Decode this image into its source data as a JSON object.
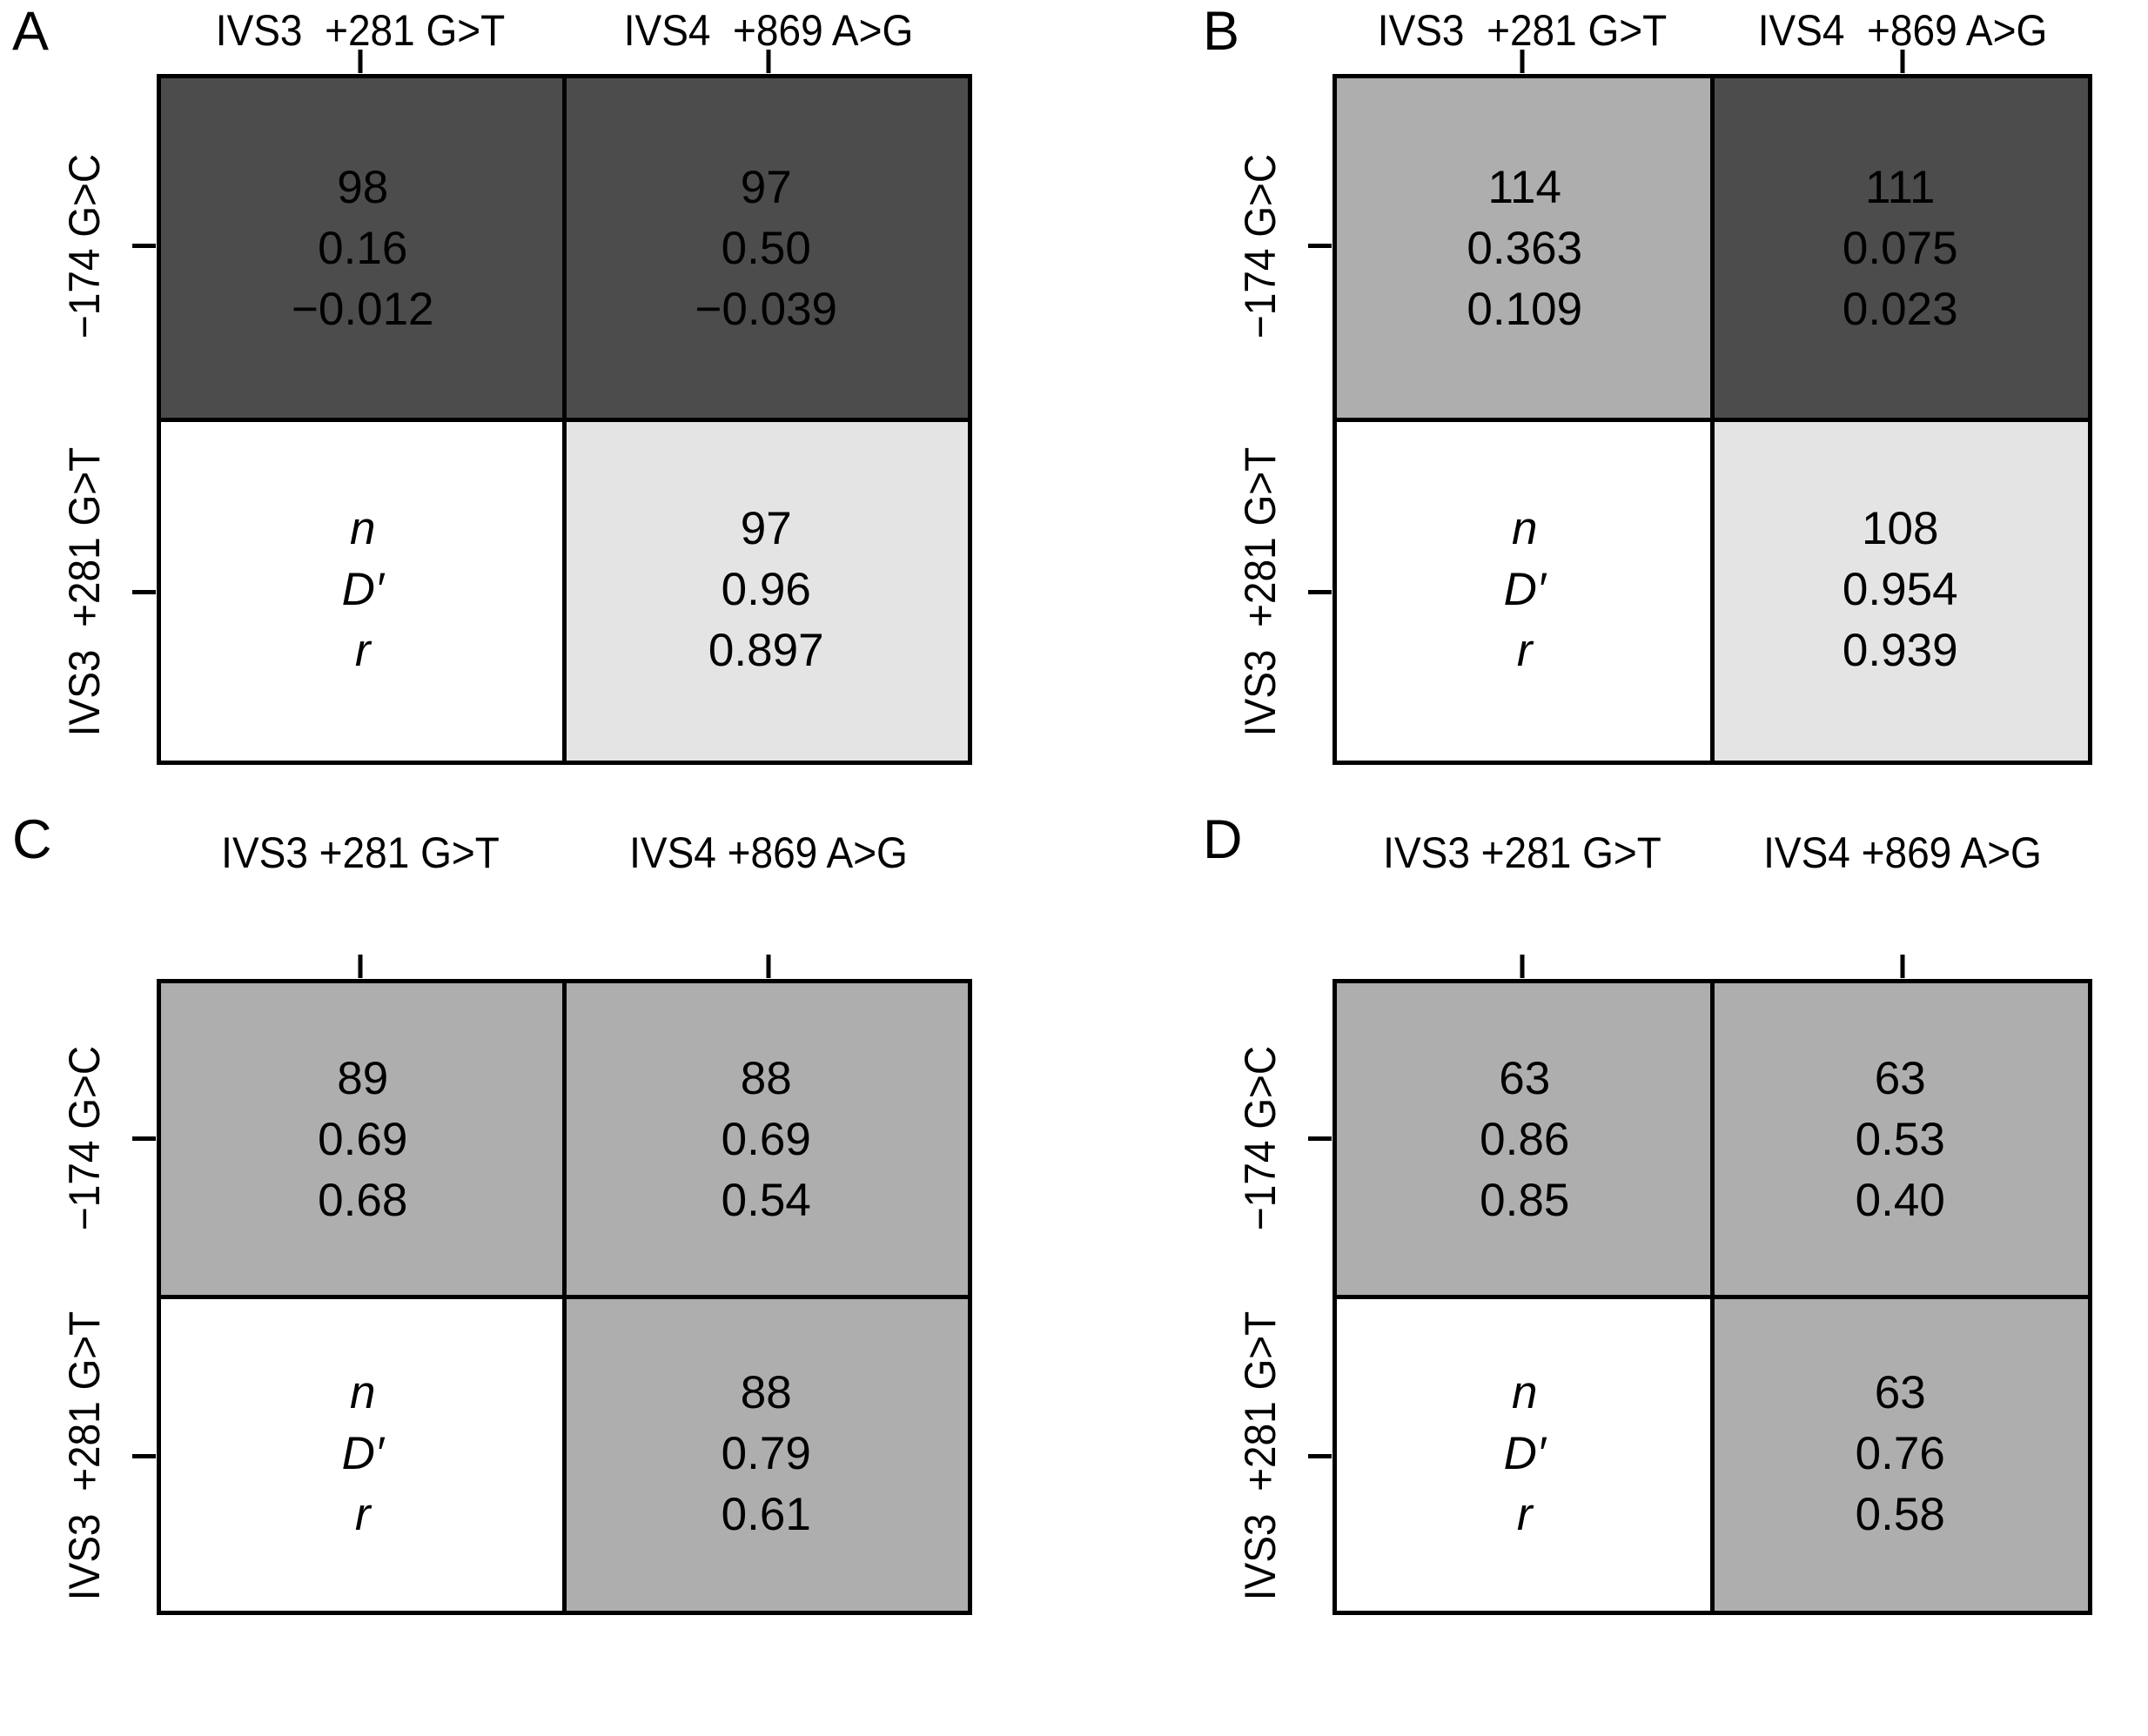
{
  "palette": {
    "dark_gray": "#4C4C4C",
    "medium_gray": "#AEAEAE",
    "light_gray": "#E4E4E4",
    "white": "#FFFFFF",
    "line_color": "#000000"
  },
  "panels": [
    {
      "label": "A",
      "col_headers": [
        "IVS3  +281 G>T",
        "IVS4  +869 A>G"
      ],
      "row_labels": [
        "−174 G>C",
        "IVS3  +281 G>T"
      ],
      "cells": {
        "top_left": {
          "lines": [
            "98",
            "0.16",
            "−0.012"
          ],
          "fill": "#4C4C4C"
        },
        "top_right": {
          "lines": [
            "97",
            "0.50",
            "−0.039"
          ],
          "fill": "#4C4C4C"
        },
        "bottom_left": {
          "lines": [
            "n",
            "D′",
            "r"
          ],
          "fill": "#FFFFFF"
        },
        "bottom_right": {
          "lines": [
            "97",
            "0.96",
            "0.897"
          ],
          "fill": "#E4E4E4"
        }
      }
    },
    {
      "label": "B",
      "col_headers": [
        "IVS3  +281 G>T",
        "IVS4  +869 A>G"
      ],
      "row_labels": [
        "−174 G>C",
        "IVS3  +281 G>T"
      ],
      "cells": {
        "top_left": {
          "lines": [
            "114",
            "0.363",
            "0.109"
          ],
          "fill": "#AEAEAE"
        },
        "top_right": {
          "lines": [
            "111",
            "0.075",
            "0.023"
          ],
          "fill": "#4C4C4C"
        },
        "bottom_left": {
          "lines": [
            "n",
            "D′",
            "r"
          ],
          "fill": "#FFFFFF"
        },
        "bottom_right": {
          "lines": [
            "108",
            "0.954",
            "0.939"
          ],
          "fill": "#E4E4E4"
        }
      }
    },
    {
      "label": "C",
      "col_headers": [
        "IVS3 +281 G>T",
        "IVS4 +869 A>G"
      ],
      "row_labels": [
        "−174 G>C",
        "IVS3  +281 G>T"
      ],
      "cells": {
        "top_left": {
          "lines": [
            "89",
            "0.69",
            "0.68"
          ],
          "fill": "#AEAEAE"
        },
        "top_right": {
          "lines": [
            "88",
            "0.69",
            "0.54"
          ],
          "fill": "#AEAEAE"
        },
        "bottom_left": {
          "lines": [
            "n",
            "D′",
            "r"
          ],
          "fill": "#FFFFFF"
        },
        "bottom_right": {
          "lines": [
            "88",
            "0.79",
            "0.61"
          ],
          "fill": "#AEAEAE"
        }
      }
    },
    {
      "label": "D",
      "col_headers": [
        "IVS3 +281 G>T",
        "IVS4 +869 A>G"
      ],
      "row_labels": [
        "−174 G>C",
        "IVS3  +281 G>T"
      ],
      "cells": {
        "top_left": {
          "lines": [
            "63",
            "0.86",
            "0.85"
          ],
          "fill": "#AEAEAE"
        },
        "top_right": {
          "lines": [
            "63",
            "0.53",
            "0.40"
          ],
          "fill": "#AEAEAE"
        },
        "bottom_left": {
          "lines": [
            "n",
            "D′",
            "r"
          ],
          "fill": "#FFFFFF"
        },
        "bottom_right": {
          "lines": [
            "63",
            "0.76",
            "0.58"
          ],
          "fill": "#AEAEAE"
        }
      }
    }
  ],
  "chart_data": {
    "type": "heatmap",
    "description": "Four-panel pairwise linkage-disequilibrium matrices; each shaded cell reports n, D′ and r for a marker pair; white legend cell labels the three statistics",
    "legend_cell": [
      "n",
      "D′",
      "r"
    ],
    "panels": [
      {
        "panel": "A",
        "columns": [
          "IVS3 +281 G>T",
          "IVS4 +869 A>G"
        ],
        "rows": [
          "−174 G>C",
          "IVS3 +281 G>T"
        ],
        "cells": [
          {
            "row": "−174 G>C",
            "col": "IVS3 +281 G>T",
            "n": 98,
            "D_prime": 0.16,
            "r": -0.012,
            "fill": "#4C4C4C"
          },
          {
            "row": "−174 G>C",
            "col": "IVS4 +869 A>G",
            "n": 97,
            "D_prime": 0.5,
            "r": -0.039,
            "fill": "#4C4C4C"
          },
          {
            "row": "IVS3 +281 G>T",
            "col": "IVS4 +869 A>G",
            "n": 97,
            "D_prime": 0.96,
            "r": 0.897,
            "fill": "#E4E4E4"
          }
        ]
      },
      {
        "panel": "B",
        "columns": [
          "IVS3 +281 G>T",
          "IVS4 +869 A>G"
        ],
        "rows": [
          "−174 G>C",
          "IVS3 +281 G>T"
        ],
        "cells": [
          {
            "row": "−174 G>C",
            "col": "IVS3 +281 G>T",
            "n": 114,
            "D_prime": 0.363,
            "r": 0.109,
            "fill": "#AEAEAE"
          },
          {
            "row": "−174 G>C",
            "col": "IVS4 +869 A>G",
            "n": 111,
            "D_prime": 0.075,
            "r": 0.023,
            "fill": "#4C4C4C"
          },
          {
            "row": "IVS3 +281 G>T",
            "col": "IVS4 +869 A>G",
            "n": 108,
            "D_prime": 0.954,
            "r": 0.939,
            "fill": "#E4E4E4"
          }
        ]
      },
      {
        "panel": "C",
        "columns": [
          "IVS3 +281 G>T",
          "IVS4 +869 A>G"
        ],
        "rows": [
          "−174 G>C",
          "IVS3 +281 G>T"
        ],
        "cells": [
          {
            "row": "−174 G>C",
            "col": "IVS3 +281 G>T",
            "n": 89,
            "D_prime": 0.69,
            "r": 0.68,
            "fill": "#AEAEAE"
          },
          {
            "row": "−174 G>C",
            "col": "IVS4 +869 A>G",
            "n": 88,
            "D_prime": 0.69,
            "r": 0.54,
            "fill": "#AEAEAE"
          },
          {
            "row": "IVS3 +281 G>T",
            "col": "IVS4 +869 A>G",
            "n": 88,
            "D_prime": 0.79,
            "r": 0.61,
            "fill": "#AEAEAE"
          }
        ]
      },
      {
        "panel": "D",
        "columns": [
          "IVS3 +281 G>T",
          "IVS4 +869 A>G"
        ],
        "rows": [
          "−174 G>C",
          "IVS3 +281 G>T"
        ],
        "cells": [
          {
            "row": "−174 G>C",
            "col": "IVS3 +281 G>T",
            "n": 63,
            "D_prime": 0.86,
            "r": 0.85,
            "fill": "#AEAEAE"
          },
          {
            "row": "−174 G>C",
            "col": "IVS4 +869 A>G",
            "n": 63,
            "D_prime": 0.53,
            "r": 0.4,
            "fill": "#AEAEAE"
          },
          {
            "row": "IVS3 +281 G>T",
            "col": "IVS4 +869 A>G",
            "n": 63,
            "D_prime": 0.76,
            "r": 0.58,
            "fill": "#AEAEAE"
          }
        ]
      }
    ]
  }
}
